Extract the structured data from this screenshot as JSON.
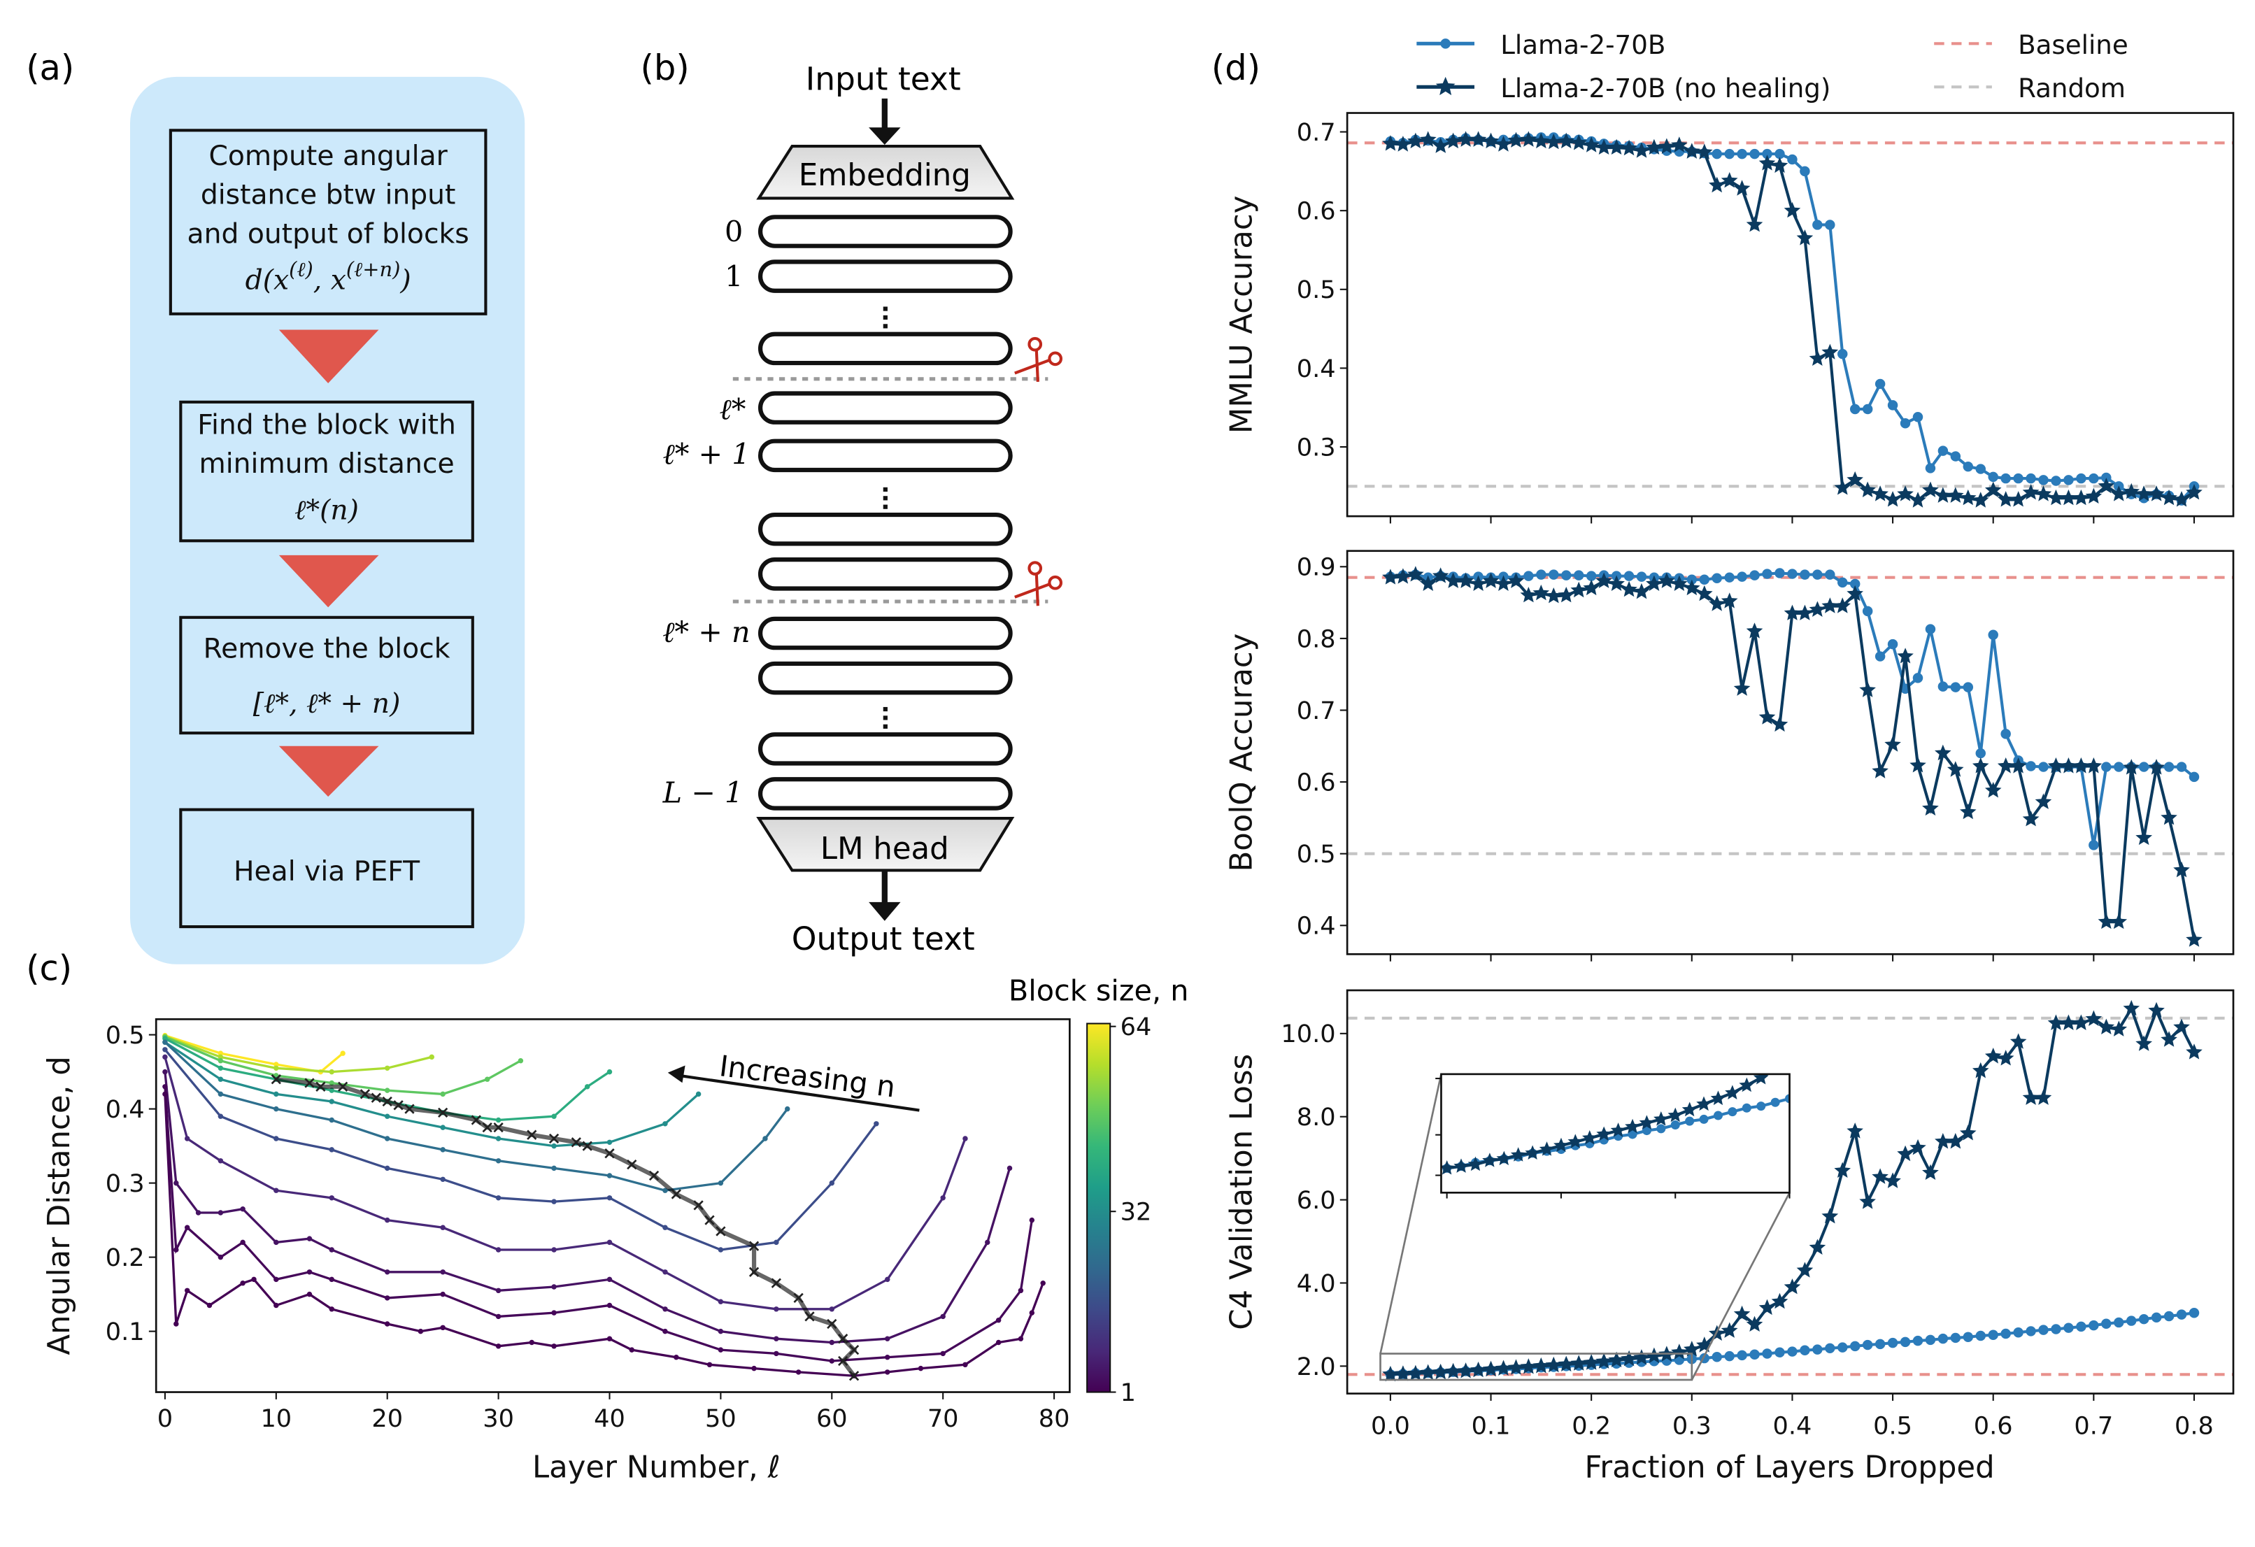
{
  "panel_labels": {
    "a": "(a)",
    "b": "(b)",
    "c": "(c)",
    "d": "(d)"
  },
  "flowchart": {
    "background_color": "#cde9fb",
    "arrow_color": "#e0574d",
    "step1": {
      "lines": [
        "Compute angular",
        "distance btw input",
        "and output of blocks"
      ],
      "formula": {
        "base": "d(x",
        "sup1": "(ℓ)",
        "mid": ", x",
        "sup2": "(ℓ+n)",
        "end": ")"
      }
    },
    "step2": {
      "lines": [
        "Find the block with",
        "minimum distance"
      ],
      "formula": "ℓ*(n)"
    },
    "step3": {
      "lines": [
        "Remove the block"
      ],
      "formula": "[ℓ*, ℓ* + n)"
    },
    "step4": {
      "lines": [
        "Heal via PEFT"
      ]
    }
  },
  "architecture": {
    "input_label": "Input text",
    "output_label": "Output text",
    "embedding_label": "Embedding",
    "head_label": "LM head",
    "layer_labels": {
      "first": "0",
      "second": "1",
      "start": "ℓ*",
      "start_plus_one": "ℓ* + 1",
      "end": "ℓ* + n",
      "last": "L − 1"
    },
    "cut_icon": "scissors-icon",
    "cut_color": "#c0281c"
  },
  "chart_data": [
    {
      "id": "angular_distance",
      "type": "line",
      "xlabel": "Layer Number, ℓ",
      "ylabel": "Angular Distance, d",
      "xlim": [
        -0.8,
        81.4
      ],
      "ylim": [
        0.018,
        0.521
      ],
      "xticks": [
        0,
        10,
        20,
        30,
        40,
        50,
        60,
        70,
        80
      ],
      "yticks": [
        0.1,
        0.2,
        0.3,
        0.4,
        0.5
      ],
      "colorbar": {
        "label": "Block size, n",
        "min": 1,
        "max": 64,
        "ticks": [
          "1",
          "32",
          "64"
        ],
        "colormap": "viridis"
      },
      "annotation": "Increasing n",
      "curves": [
        {
          "n": 1,
          "layers": [
            0,
            1,
            2,
            4,
            7,
            8,
            10,
            13,
            15,
            20,
            23,
            25,
            30,
            33,
            35,
            40,
            42,
            46,
            49,
            53,
            57,
            62,
            65,
            68,
            72,
            75,
            77,
            78,
            79
          ],
          "d": [
            0.42,
            0.11,
            0.155,
            0.135,
            0.165,
            0.17,
            0.135,
            0.15,
            0.13,
            0.11,
            0.1,
            0.105,
            0.08,
            0.085,
            0.08,
            0.09,
            0.075,
            0.065,
            0.055,
            0.05,
            0.045,
            0.04,
            0.045,
            0.05,
            0.055,
            0.085,
            0.09,
            0.125,
            0.165
          ]
        },
        {
          "n": 2,
          "layers": [
            0,
            1,
            2,
            5,
            7,
            10,
            13,
            15,
            20,
            25,
            30,
            35,
            40,
            45,
            50,
            55,
            60,
            65,
            70,
            75,
            77,
            78
          ],
          "d": [
            0.43,
            0.21,
            0.24,
            0.2,
            0.22,
            0.17,
            0.18,
            0.17,
            0.145,
            0.15,
            0.12,
            0.125,
            0.135,
            0.1,
            0.075,
            0.07,
            0.06,
            0.065,
            0.07,
            0.115,
            0.155,
            0.25
          ]
        },
        {
          "n": 4,
          "layers": [
            0,
            1,
            3,
            5,
            7,
            10,
            13,
            15,
            20,
            25,
            30,
            35,
            40,
            45,
            50,
            55,
            60,
            65,
            70,
            74,
            76
          ],
          "d": [
            0.45,
            0.3,
            0.26,
            0.26,
            0.265,
            0.22,
            0.225,
            0.21,
            0.18,
            0.18,
            0.155,
            0.16,
            0.17,
            0.13,
            0.1,
            0.09,
            0.085,
            0.09,
            0.12,
            0.22,
            0.32
          ]
        },
        {
          "n": 8,
          "layers": [
            0,
            2,
            5,
            10,
            15,
            20,
            25,
            30,
            35,
            40,
            45,
            50,
            55,
            60,
            65,
            70,
            72
          ],
          "d": [
            0.47,
            0.36,
            0.33,
            0.29,
            0.28,
            0.25,
            0.24,
            0.21,
            0.21,
            0.22,
            0.18,
            0.14,
            0.13,
            0.13,
            0.17,
            0.28,
            0.36
          ]
        },
        {
          "n": 16,
          "layers": [
            0,
            5,
            10,
            15,
            20,
            25,
            30,
            35,
            40,
            45,
            50,
            55,
            60,
            64
          ],
          "d": [
            0.48,
            0.39,
            0.36,
            0.345,
            0.32,
            0.305,
            0.28,
            0.275,
            0.28,
            0.24,
            0.21,
            0.22,
            0.3,
            0.38
          ]
        },
        {
          "n": 24,
          "layers": [
            0,
            5,
            10,
            15,
            20,
            25,
            30,
            35,
            40,
            45,
            50,
            54,
            56
          ],
          "d": [
            0.49,
            0.42,
            0.4,
            0.385,
            0.36,
            0.345,
            0.33,
            0.32,
            0.31,
            0.29,
            0.3,
            0.36,
            0.4
          ]
        },
        {
          "n": 32,
          "layers": [
            0,
            5,
            10,
            15,
            20,
            25,
            30,
            35,
            40,
            45,
            48
          ],
          "d": [
            0.49,
            0.44,
            0.42,
            0.41,
            0.39,
            0.375,
            0.36,
            0.35,
            0.355,
            0.38,
            0.42
          ]
        },
        {
          "n": 40,
          "layers": [
            0,
            5,
            10,
            15,
            20,
            25,
            30,
            35,
            38,
            40
          ],
          "d": [
            0.495,
            0.455,
            0.44,
            0.425,
            0.41,
            0.395,
            0.385,
            0.39,
            0.43,
            0.45
          ]
        },
        {
          "n": 48,
          "layers": [
            0,
            5,
            10,
            15,
            20,
            25,
            29,
            32
          ],
          "d": [
            0.497,
            0.465,
            0.445,
            0.435,
            0.425,
            0.42,
            0.44,
            0.465
          ]
        },
        {
          "n": 56,
          "layers": [
            0,
            5,
            10,
            15,
            20,
            24
          ],
          "d": [
            0.498,
            0.47,
            0.455,
            0.45,
            0.455,
            0.47
          ]
        },
        {
          "n": 64,
          "layers": [
            0,
            5,
            10,
            14,
            16
          ],
          "d": [
            0.499,
            0.475,
            0.46,
            0.45,
            0.475
          ]
        }
      ],
      "optimal_path": {
        "layers": [
          10,
          13,
          14,
          16,
          18,
          19,
          20,
          21,
          22,
          25,
          28,
          29,
          30,
          33,
          35,
          37,
          38,
          40,
          42,
          44,
          46,
          48,
          49,
          50,
          53,
          53,
          55,
          57,
          58,
          60,
          61,
          62,
          61,
          62
        ],
        "d": [
          0.44,
          0.435,
          0.43,
          0.43,
          0.42,
          0.415,
          0.41,
          0.405,
          0.4,
          0.395,
          0.385,
          0.375,
          0.375,
          0.365,
          0.36,
          0.355,
          0.35,
          0.34,
          0.325,
          0.31,
          0.285,
          0.27,
          0.25,
          0.235,
          0.215,
          0.18,
          0.165,
          0.145,
          0.12,
          0.11,
          0.09,
          0.075,
          0.06,
          0.04
        ]
      }
    },
    {
      "id": "mmlu",
      "type": "line",
      "ylabel": "MMLU Accuracy",
      "xlim": [
        -0.043,
        0.839
      ],
      "ylim": [
        0.212,
        0.724
      ],
      "yticks": [
        "0.3",
        "0.4",
        "0.5",
        "0.6",
        "0.7"
      ],
      "baseline": 0.686,
      "random": 0.25,
      "series": [
        {
          "name": "Llama-2-70B",
          "values": [
            0.688,
            0.686,
            0.69,
            0.689,
            0.687,
            0.69,
            0.692,
            0.69,
            0.688,
            0.69,
            0.691,
            0.692,
            0.693,
            0.693,
            0.691,
            0.69,
            0.688,
            0.685,
            0.683,
            0.682,
            0.68,
            0.678,
            0.676,
            0.675,
            0.675,
            0.673,
            0.672,
            0.672,
            0.672,
            0.672,
            0.672,
            0.672,
            0.665,
            0.65,
            0.582,
            0.582,
            0.418,
            0.348,
            0.348,
            0.38,
            0.353,
            0.33,
            0.338,
            0.273,
            0.295,
            0.288,
            0.275,
            0.272,
            0.262,
            0.26,
            0.26,
            0.26,
            0.258,
            0.257,
            0.258,
            0.26,
            0.26,
            0.261,
            0.25,
            0.24,
            0.235,
            0.24,
            0.238,
            0.232,
            0.25
          ]
        },
        {
          "name": "Llama-2-70B (no healing)",
          "values": [
            0.685,
            0.684,
            0.688,
            0.69,
            0.682,
            0.688,
            0.69,
            0.69,
            0.688,
            0.684,
            0.689,
            0.69,
            0.688,
            0.687,
            0.688,
            0.686,
            0.683,
            0.68,
            0.68,
            0.679,
            0.676,
            0.68,
            0.681,
            0.683,
            0.675,
            0.674,
            0.632,
            0.638,
            0.628,
            0.582,
            0.66,
            0.657,
            0.6,
            0.565,
            0.412,
            0.42,
            0.248,
            0.258,
            0.245,
            0.24,
            0.233,
            0.24,
            0.232,
            0.245,
            0.238,
            0.238,
            0.235,
            0.232,
            0.245,
            0.233,
            0.233,
            0.242,
            0.24,
            0.235,
            0.235,
            0.235,
            0.237,
            0.25,
            0.24,
            0.243,
            0.24,
            0.24,
            0.235,
            0.233,
            0.242
          ]
        }
      ]
    },
    {
      "id": "boolq",
      "type": "line",
      "ylabel": "BoolQ Accuracy",
      "xlim": [
        -0.043,
        0.839
      ],
      "ylim": [
        0.36,
        0.922
      ],
      "yticks": [
        "0.4",
        "0.5",
        "0.6",
        "0.7",
        "0.8",
        "0.9"
      ],
      "baseline": 0.885,
      "random": 0.5,
      "series": [
        {
          "name": "Llama-2-70B",
          "values": [
            0.886,
            0.888,
            0.889,
            0.885,
            0.887,
            0.886,
            0.884,
            0.886,
            0.885,
            0.886,
            0.885,
            0.887,
            0.889,
            0.889,
            0.888,
            0.888,
            0.887,
            0.888,
            0.887,
            0.887,
            0.886,
            0.885,
            0.885,
            0.884,
            0.882,
            0.882,
            0.884,
            0.885,
            0.886,
            0.888,
            0.89,
            0.891,
            0.89,
            0.889,
            0.889,
            0.889,
            0.878,
            0.876,
            0.838,
            0.775,
            0.792,
            0.73,
            0.745,
            0.813,
            0.733,
            0.732,
            0.732,
            0.64,
            0.805,
            0.667,
            0.63,
            0.622,
            0.621,
            0.621,
            0.621,
            0.621,
            0.512,
            0.621,
            0.621,
            0.621,
            0.621,
            0.621,
            0.621,
            0.621,
            0.607
          ]
        },
        {
          "name": "Llama-2-70B (no healing)",
          "values": [
            0.885,
            0.886,
            0.889,
            0.876,
            0.887,
            0.88,
            0.88,
            0.876,
            0.88,
            0.876,
            0.88,
            0.86,
            0.863,
            0.859,
            0.86,
            0.867,
            0.87,
            0.88,
            0.876,
            0.868,
            0.865,
            0.876,
            0.88,
            0.876,
            0.87,
            0.862,
            0.848,
            0.852,
            0.73,
            0.81,
            0.69,
            0.68,
            0.835,
            0.835,
            0.84,
            0.845,
            0.845,
            0.862,
            0.728,
            0.615,
            0.652,
            0.775,
            0.623,
            0.563,
            0.64,
            0.617,
            0.558,
            0.622,
            0.588,
            0.622,
            0.622,
            0.548,
            0.572,
            0.622,
            0.622,
            0.622,
            0.622,
            0.405,
            0.405,
            0.62,
            0.522,
            0.62,
            0.55,
            0.477,
            0.38
          ]
        }
      ]
    },
    {
      "id": "c4",
      "type": "line",
      "ylabel": "C4 Validation Loss",
      "xlabel": "Fraction of Layers Dropped",
      "xlim": [
        -0.043,
        0.839
      ],
      "ylim": [
        1.34,
        11.04
      ],
      "xticks": [
        "0.0",
        "0.1",
        "0.2",
        "0.3",
        "0.4",
        "0.5",
        "0.6",
        "0.7",
        "0.8"
      ],
      "yticks": [
        "2.0",
        "4.0",
        "6.0",
        "8.0",
        "10.0"
      ],
      "baseline": 1.8,
      "random": 10.37,
      "inset": {
        "xlim": [
          -0.005,
          0.3
        ],
        "ylim": [
          1.67,
          2.3
        ]
      },
      "series": [
        {
          "name": "Llama-2-70B",
          "values": [
            1.8,
            1.81,
            1.83,
            1.84,
            1.85,
            1.86,
            1.88,
            1.89,
            1.9,
            1.92,
            1.93,
            1.95,
            1.97,
            1.98,
            2.0,
            2.01,
            2.03,
            2.05,
            2.06,
            2.08,
            2.1,
            2.12,
            2.13,
            2.15,
            2.17,
            2.19,
            2.22,
            2.24,
            2.26,
            2.28,
            2.3,
            2.33,
            2.35,
            2.38,
            2.4,
            2.43,
            2.45,
            2.48,
            2.51,
            2.53,
            2.56,
            2.58,
            2.61,
            2.63,
            2.66,
            2.68,
            2.7,
            2.73,
            2.75,
            2.78,
            2.81,
            2.84,
            2.87,
            2.89,
            2.92,
            2.95,
            2.98,
            3.02,
            3.05,
            3.09,
            3.13,
            3.17,
            3.2,
            3.24,
            3.28
          ]
        },
        {
          "name": "Llama-2-70B (no healing)",
          "values": [
            1.8,
            1.81,
            1.82,
            1.84,
            1.85,
            1.87,
            1.88,
            1.9,
            1.92,
            1.94,
            1.96,
            1.98,
            2.0,
            2.02,
            2.04,
            2.06,
            2.08,
            2.11,
            2.14,
            2.17,
            2.2,
            2.24,
            2.28,
            2.33,
            2.4,
            2.5,
            2.78,
            2.85,
            3.25,
            3.0,
            3.4,
            3.55,
            3.9,
            4.3,
            4.85,
            5.6,
            6.7,
            7.65,
            5.95,
            6.55,
            6.45,
            7.1,
            7.25,
            6.65,
            7.4,
            7.4,
            7.6,
            9.1,
            9.45,
            9.4,
            9.8,
            8.45,
            8.45,
            10.25,
            10.25,
            10.25,
            10.35,
            10.15,
            10.1,
            10.6,
            9.75,
            10.55,
            9.85,
            10.15,
            9.55
          ]
        }
      ]
    }
  ],
  "legend": {
    "entries": [
      {
        "label": "Llama-2-70B",
        "marker": "circle",
        "color": "#2b7bba"
      },
      {
        "label": "Llama-2-70B (no healing)",
        "marker": "star",
        "color": "#0b3a5f"
      },
      {
        "label": "Baseline",
        "marker": "dashed",
        "color": "#e8908c"
      },
      {
        "label": "Random",
        "marker": "dashed",
        "color": "#c4c4c4"
      }
    ]
  }
}
